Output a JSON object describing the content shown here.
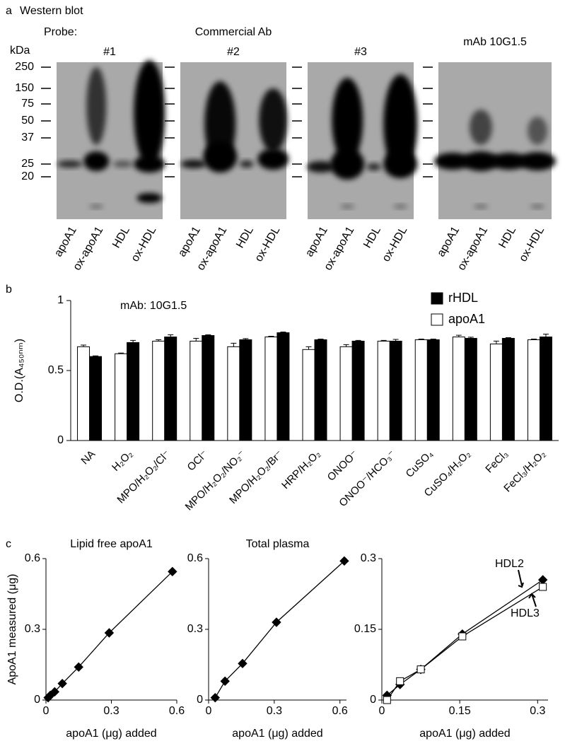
{
  "panel_a": {
    "label": "a",
    "title": "Western blot",
    "probe_label": "Probe:",
    "group_label": "Commercial Ab",
    "unit": "kDa",
    "markers": [
      "250",
      "150",
      "75",
      "50",
      "37",
      "25",
      "20"
    ],
    "blots": [
      {
        "title": "#1",
        "lanes": [
          "apoA1",
          "ox-apoA1",
          "HDL",
          "ox-HDL"
        ]
      },
      {
        "title": "#2",
        "lanes": [
          "apoA1",
          "ox-apoA1",
          "HDL",
          "ox-HDL"
        ]
      },
      {
        "title": "#3",
        "lanes": [
          "apoA1",
          "ox-apoA1",
          "HDL",
          "ox-HDL"
        ]
      },
      {
        "title": "mAb 10G1.5",
        "lanes": [
          "apoA1",
          "ox-apoA1",
          "HDL",
          "ox-HDL"
        ]
      }
    ]
  },
  "panel_b_label": "b",
  "panel_c_label": "c",
  "chart_data": [
    {
      "type": "bar",
      "title": "mAb: 10G1.5",
      "y_label": "O.D.(A₄₅₀ₙₘ)",
      "categories": [
        "NA",
        "H₂O₂",
        "MPO/H₂O₂/Cl⁻",
        "OCl⁻",
        "MPO/H₂O₂/NO₂⁻",
        "MPO/H₂O₂/Br⁻",
        "HRP/H₂O₂",
        "ONOO⁻",
        "ONOO⁻/HCO₃⁻",
        "CuSO₄",
        "CuSO₄/H₂O₂",
        "FeCl₃",
        "FeCl₃/H₂O₂"
      ],
      "series": [
        {
          "name": "rHDL",
          "color": "#000000",
          "values": [
            0.6,
            0.7,
            0.74,
            0.75,
            0.72,
            0.77,
            0.72,
            0.71,
            0.71,
            0.72,
            0.73,
            0.73,
            0.74
          ],
          "errors": [
            0.005,
            0.015,
            0.015,
            0.005,
            0.008,
            0.005,
            0.005,
            0.005,
            0.012,
            0.005,
            0.008,
            0.005,
            0.02
          ]
        },
        {
          "name": "apoA1",
          "color": "#ffffff",
          "values": [
            0.67,
            0.62,
            0.71,
            0.71,
            0.67,
            0.74,
            0.65,
            0.67,
            0.71,
            0.72,
            0.74,
            0.69,
            0.72
          ],
          "errors": [
            0.012,
            0.005,
            0.01,
            0.02,
            0.025,
            0.005,
            0.02,
            0.015,
            0.005,
            0.005,
            0.012,
            0.02,
            0.005
          ]
        }
      ],
      "ylim": [
        0,
        1
      ],
      "yticks": [
        0,
        0.5,
        1
      ],
      "legend": "top-right"
    },
    {
      "type": "line",
      "title": "Lipid free apoA1",
      "x_label": "apoA1 (μg) added",
      "y_label": "ApoA1 measured (μg)",
      "x": [
        0.01,
        0.02,
        0.04,
        0.075,
        0.15,
        0.29,
        0.58
      ],
      "series": [
        {
          "color": "#000000",
          "marker": "diamond",
          "values": [
            0.01,
            0.02,
            0.035,
            0.07,
            0.14,
            0.285,
            0.545
          ]
        }
      ],
      "xlim": [
        0,
        0.6
      ],
      "xticks": [
        0,
        0.3,
        0.6
      ],
      "ylim": [
        0,
        0.6
      ],
      "yticks": [
        0,
        0.3,
        0.6
      ]
    },
    {
      "type": "line",
      "title": "Total plasma",
      "x_label": "apoA1 (μg) added",
      "x": [
        0.03,
        0.075,
        0.155,
        0.31,
        0.62
      ],
      "series": [
        {
          "color": "#000000",
          "marker": "diamond",
          "values": [
            0.01,
            0.08,
            0.155,
            0.33,
            0.59
          ]
        }
      ],
      "xlim": [
        0,
        0.63
      ],
      "xticks": [
        0,
        0.3,
        0.6
      ],
      "ylim": [
        0,
        0.6
      ],
      "yticks": [
        0,
        0.3,
        0.6
      ]
    },
    {
      "type": "line",
      "x_label": "apoA1 (μg) added",
      "x": [
        0.01,
        0.035,
        0.075,
        0.155,
        0.31
      ],
      "series": [
        {
          "name": "HDL2",
          "color": "#000000",
          "marker": "diamond",
          "values": [
            0.01,
            0.033,
            0.065,
            0.14,
            0.255
          ]
        },
        {
          "name": "HDL3",
          "color": "#ffffff",
          "marker": "square",
          "values": [
            0.0,
            0.04,
            0.065,
            0.135,
            0.24
          ]
        }
      ],
      "xlim": [
        0,
        0.32
      ],
      "xticks": [
        0,
        0.15,
        0.3
      ],
      "ylim": [
        0,
        0.3
      ],
      "yticks": [
        0,
        0.15,
        0.3
      ]
    }
  ]
}
